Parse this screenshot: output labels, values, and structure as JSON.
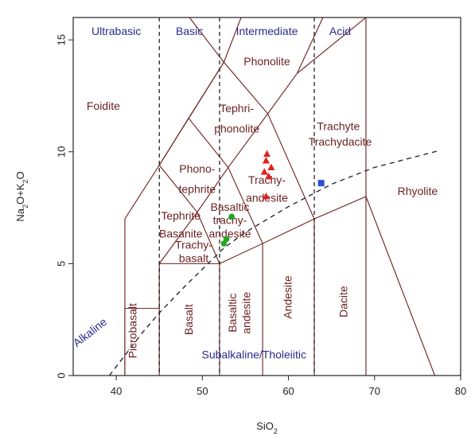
{
  "chart_data": {
    "type": "scatter",
    "xlabel": "SiO2",
    "ylabel": "Na2O+K2O",
    "xlim": [
      35,
      80
    ],
    "ylim": [
      0,
      16
    ],
    "xticks": [
      40,
      50,
      60,
      70,
      80
    ],
    "yticks": [
      0,
      5,
      10,
      15
    ],
    "grid": false,
    "classes": [
      "Ultrabasic",
      "Basic",
      "Intermediate",
      "Acid"
    ],
    "fields": [
      {
        "name": "Foidite",
        "x": 38.5,
        "y": 12.0
      },
      {
        "name": "Phonolite",
        "x": 57.5,
        "y": 14.0
      },
      {
        "name": "Tephri-",
        "x": 54.0,
        "y": 11.9
      },
      {
        "name": "phonolite",
        "x": 54.0,
        "y": 11.0
      },
      {
        "name": "Trachyte",
        "x": 65.8,
        "y": 11.1
      },
      {
        "name": "Trachydacite",
        "x": 66.0,
        "y": 10.4
      },
      {
        "name": "Phono-",
        "x": 49.4,
        "y": 9.2
      },
      {
        "name": "tephrite",
        "x": 49.4,
        "y": 8.3
      },
      {
        "name": "Trachy-",
        "x": 57.5,
        "y": 8.7
      },
      {
        "name": "andesite",
        "x": 57.5,
        "y": 7.9
      },
      {
        "name": "Basaltic",
        "x": 53.2,
        "y": 7.5
      },
      {
        "name": "trachy-",
        "x": 53.2,
        "y": 6.9
      },
      {
        "name": "andesite",
        "x": 53.2,
        "y": 6.3
      },
      {
        "name": "Tephrite",
        "x": 47.5,
        "y": 7.1
      },
      {
        "name": "Basanite",
        "x": 47.5,
        "y": 6.3
      },
      {
        "name": "Trachy-",
        "x": 49.0,
        "y": 5.8
      },
      {
        "name": "basalt",
        "x": 49.0,
        "y": 5.2
      },
      {
        "name": "Rhyolite",
        "x": 75.0,
        "y": 8.2
      },
      {
        "name": "Picrobasalt",
        "x": 42.0,
        "y": 2.0,
        "rotate": -90
      },
      {
        "name": "Basalt",
        "x": 48.5,
        "y": 2.5,
        "rotate": -90
      },
      {
        "name": "Basaltic",
        "x": 53.6,
        "y": 2.8,
        "rotate": -90
      },
      {
        "name": "andesite",
        "x": 55.2,
        "y": 2.8,
        "rotate": -90
      },
      {
        "name": "Andesite",
        "x": 60.0,
        "y": 3.5,
        "rotate": -90
      },
      {
        "name": "Dacite",
        "x": 66.5,
        "y": 3.3,
        "rotate": -90
      }
    ],
    "series_labels": [
      {
        "name": "Alkaline",
        "x": 37.0,
        "y": 1.9,
        "rotate": -38
      },
      {
        "name": "Subalkaline/Tholeiitic",
        "x": 56.0,
        "y": 0.9,
        "rotate": 0
      }
    ],
    "series": [
      {
        "marker": "triangle",
        "color": "#e02020",
        "points": [
          [
            57.5,
            9.9
          ],
          [
            57.4,
            9.6
          ],
          [
            58.0,
            9.3
          ],
          [
            57.2,
            9.1
          ],
          [
            57.7,
            8.9
          ],
          [
            57.4,
            8.0
          ]
        ]
      },
      {
        "marker": "circle",
        "color": "#22a722",
        "points": [
          [
            53.4,
            7.1
          ],
          [
            52.8,
            6.1
          ],
          [
            52.5,
            5.9
          ]
        ]
      },
      {
        "marker": "square",
        "color": "#2a4fd8",
        "points": [
          [
            63.8,
            8.6
          ]
        ]
      }
    ],
    "colors": {
      "field_lines": "#6b1f1f",
      "labels": "#6b1f1f",
      "class_labels": "#2b2b8c"
    }
  }
}
